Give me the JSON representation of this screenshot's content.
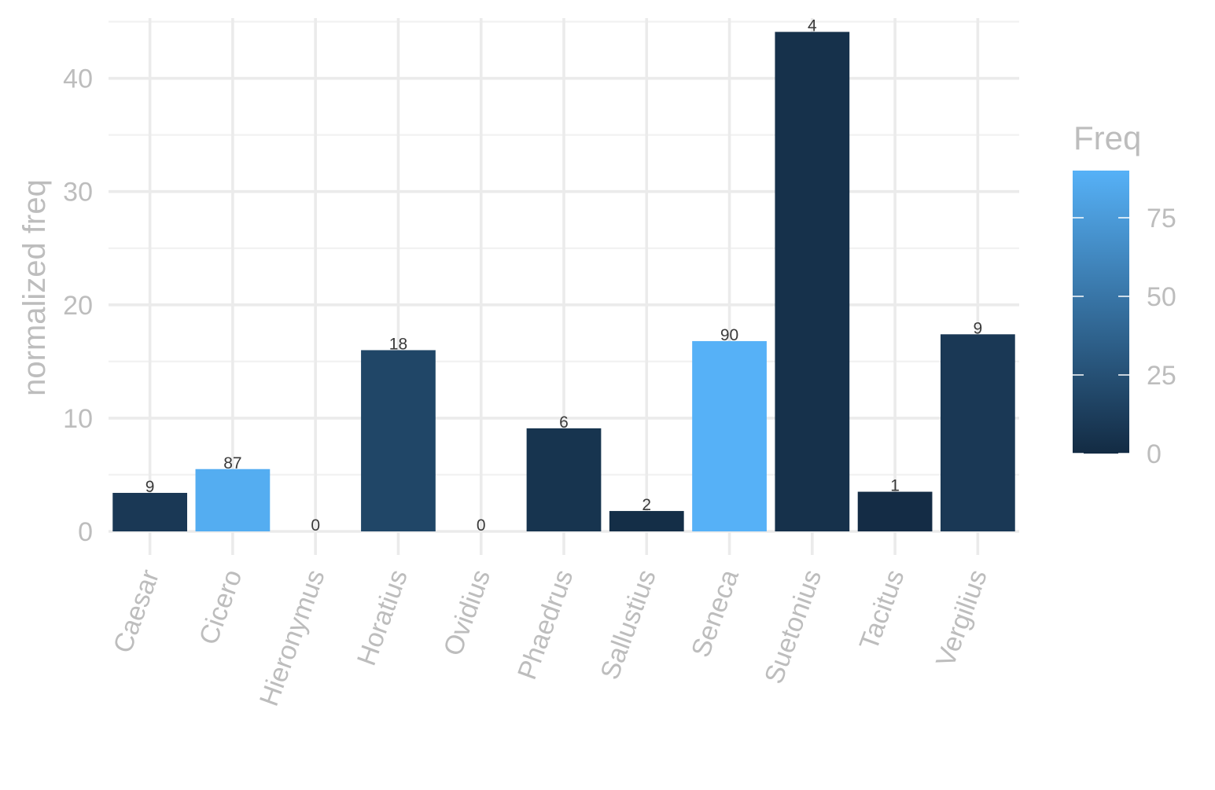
{
  "chart_data": {
    "type": "bar",
    "ylabel": "normalized freq",
    "ylim": [
      0,
      45
    ],
    "yticks": [
      0,
      10,
      20,
      30,
      40
    ],
    "grid": true,
    "categories": [
      "Caesar",
      "Cicero",
      "Hieronymus",
      "Horatius",
      "Ovidius",
      "Phaedrus",
      "Sallustius",
      "Seneca",
      "Suetonius",
      "Tacitus",
      "Vergilius"
    ],
    "values": [
      3.4,
      5.5,
      0,
      16.0,
      0,
      9.1,
      1.8,
      16.8,
      44.1,
      3.5,
      17.4
    ],
    "labels": [
      "9",
      "87",
      "0",
      "18",
      "0",
      "6",
      "2",
      "90",
      "4",
      "1",
      "9"
    ],
    "fill_values": [
      9,
      87,
      0,
      18,
      0,
      6,
      2,
      90,
      4,
      1,
      9
    ],
    "legend": {
      "title": "Freq",
      "position": "right",
      "range": [
        0,
        90
      ],
      "ticks": [
        "0",
        "25",
        "50",
        "75"
      ],
      "tick_values": [
        0,
        25,
        50,
        75
      ],
      "colors": {
        "low": "#132B43",
        "high": "#56B1F7"
      }
    }
  }
}
